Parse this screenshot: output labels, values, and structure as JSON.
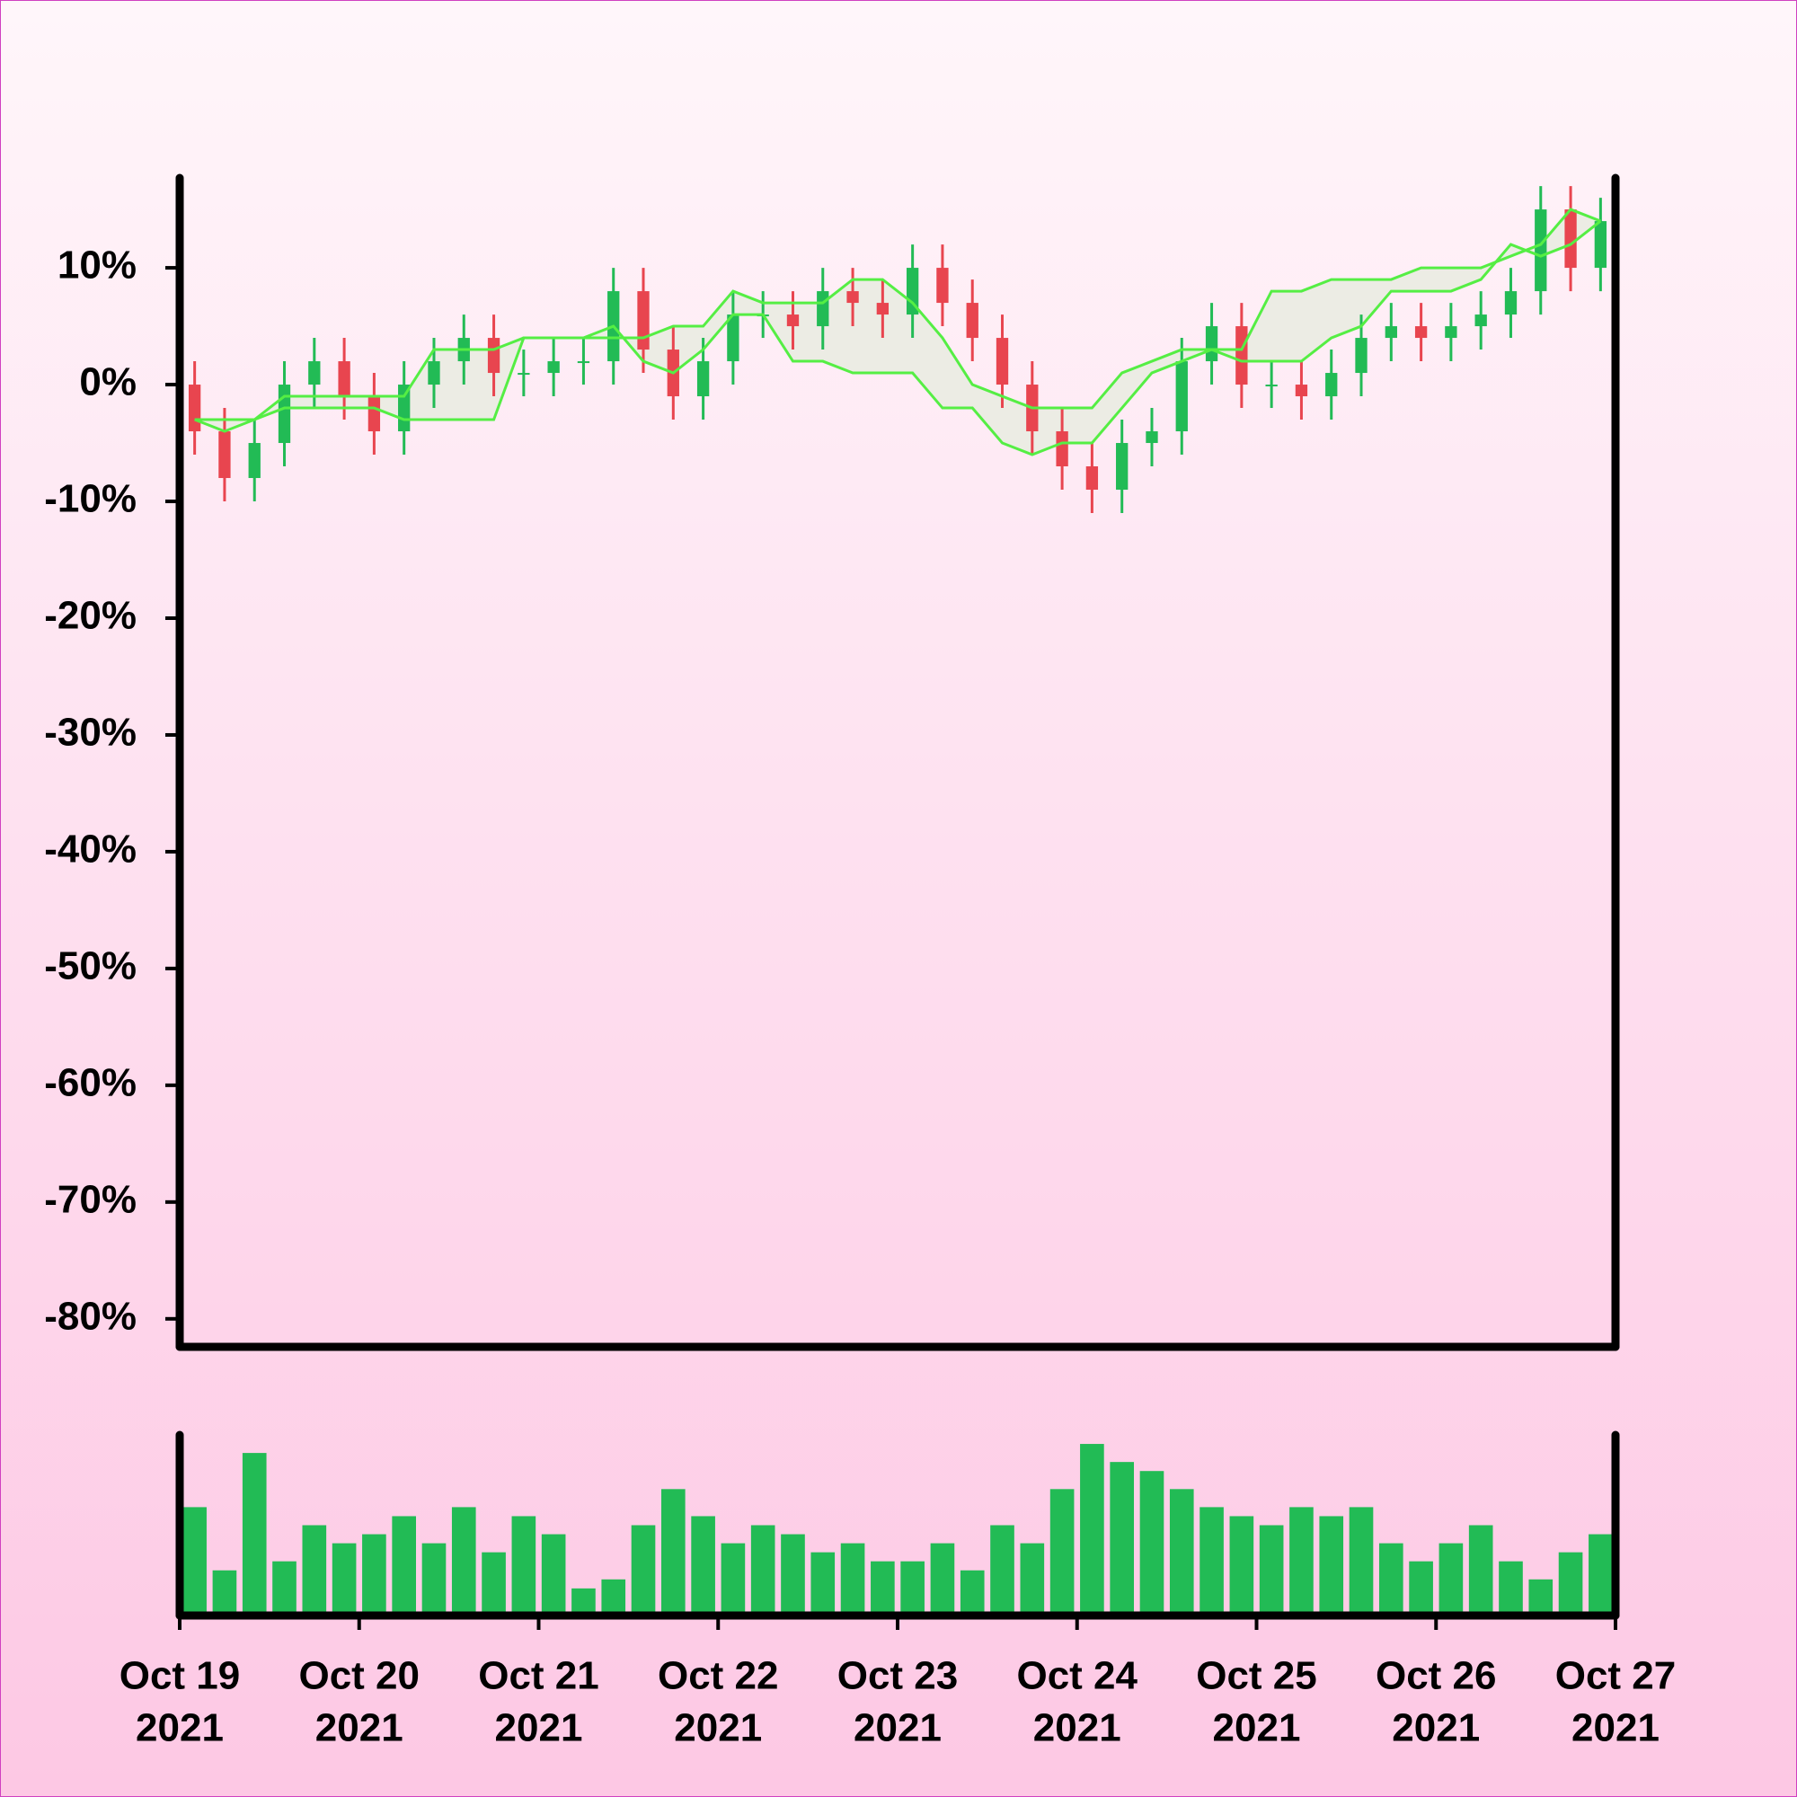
{
  "chart_data": {
    "type": "candlestick",
    "x": [
      0.0833,
      0.25,
      0.4167,
      0.5833,
      0.75,
      0.9167,
      1.0833,
      1.25,
      1.4167,
      1.5833,
      1.75,
      1.9167,
      2.0833,
      2.25,
      2.4167,
      2.5833,
      2.75,
      2.9167,
      3.0833,
      3.25,
      3.4167,
      3.5833,
      3.75,
      3.9167,
      4.0833,
      4.25,
      4.4167,
      4.5833,
      4.75,
      4.9167,
      5.0833,
      5.25,
      5.4167,
      5.5833,
      5.75,
      5.9167,
      6.0833,
      6.25,
      6.4167,
      6.5833,
      6.75,
      6.9167,
      7.0833,
      7.25,
      7.4167,
      7.5833,
      7.75,
      7.9167
    ],
    "open": [
      0,
      -4,
      -8,
      -5,
      0,
      2,
      -1,
      -4,
      0,
      2,
      4,
      1,
      1,
      2,
      2,
      8,
      3,
      -1,
      2,
      6,
      6,
      5,
      8,
      7,
      6,
      10,
      7,
      4,
      0,
      -4,
      -7,
      -9,
      -5,
      -4,
      2,
      5,
      0,
      0,
      -1,
      1,
      4,
      5,
      4,
      5,
      6,
      8,
      15,
      10
    ],
    "high": [
      2,
      -2,
      -3,
      2,
      4,
      4,
      1,
      2,
      4,
      6,
      6,
      3,
      4,
      4,
      10,
      10,
      5,
      4,
      8,
      8,
      8,
      10,
      10,
      9,
      12,
      12,
      9,
      6,
      2,
      -2,
      -5,
      -3,
      -2,
      4,
      7,
      7,
      2,
      2,
      3,
      6,
      7,
      7,
      7,
      8,
      10,
      17,
      17,
      16
    ],
    "low": [
      -6,
      -10,
      -10,
      -7,
      -2,
      -3,
      -6,
      -6,
      -2,
      0,
      -1,
      -1,
      -1,
      0,
      0,
      1,
      -3,
      -3,
      0,
      4,
      3,
      3,
      5,
      4,
      4,
      5,
      2,
      -2,
      -6,
      -9,
      -11,
      -11,
      -7,
      -6,
      0,
      -2,
      -2,
      -3,
      -3,
      -1,
      2,
      2,
      2,
      3,
      4,
      6,
      8,
      8
    ],
    "close": [
      -4,
      -8,
      -5,
      0,
      2,
      -1,
      -4,
      0,
      2,
      4,
      1,
      1,
      2,
      2,
      8,
      3,
      -1,
      2,
      6,
      6,
      5,
      8,
      7,
      6,
      10,
      7,
      4,
      0,
      -4,
      -7,
      -9,
      -5,
      -4,
      2,
      5,
      0,
      0,
      -1,
      1,
      4,
      5,
      4,
      5,
      6,
      8,
      15,
      10,
      14
    ],
    "up_color": "#22bb55",
    "down_color": "#e8454f",
    "bands": [
      {
        "color": "#55ee44",
        "values": [
          -3,
          -3,
          -3,
          -1,
          -1,
          -1,
          -1,
          -1,
          3,
          3,
          3,
          4,
          4,
          4,
          4,
          4,
          5,
          5,
          8,
          7,
          7,
          7,
          9,
          9,
          7,
          4,
          0,
          -1,
          -2,
          -2,
          -2,
          1,
          2,
          3,
          3,
          3,
          8,
          8,
          9,
          9,
          9,
          10,
          10,
          10,
          11,
          12,
          15,
          14
        ]
      },
      {
        "color": "#55ee44",
        "values": [
          -3,
          -4,
          -3,
          -2,
          -2,
          -2,
          -2,
          -3,
          -3,
          -3,
          -3,
          4,
          4,
          4,
          5,
          2,
          1,
          3,
          6,
          6,
          2,
          2,
          1,
          1,
          1,
          -2,
          -2,
          -5,
          -6,
          -5,
          -5,
          -2,
          1,
          2,
          3,
          2,
          2,
          2,
          4,
          5,
          8,
          8,
          8,
          9,
          12,
          11,
          12,
          14
        ]
      }
    ],
    "band_fill": "#ececE4",
    "xlim": [
      0,
      8
    ],
    "xticks": [
      {
        "value": 0,
        "label": [
          "Oct 19",
          "2021"
        ]
      },
      {
        "value": 1,
        "label": [
          "Oct 20",
          "2021"
        ]
      },
      {
        "value": 2,
        "label": [
          "Oct 21",
          "2021"
        ]
      },
      {
        "value": 3,
        "label": [
          "Oct 22",
          "2021"
        ]
      },
      {
        "value": 4,
        "label": [
          "Oct 23",
          "2021"
        ]
      },
      {
        "value": 5,
        "label": [
          "Oct 24",
          "2021"
        ]
      },
      {
        "value": 6,
        "label": [
          "Oct 25",
          "2021"
        ]
      },
      {
        "value": 7,
        "label": [
          "Oct 26",
          "2021"
        ]
      },
      {
        "value": 8,
        "label": [
          "Oct 27",
          "2021"
        ]
      }
    ],
    "ylim": [
      -82.4,
      17.7
    ],
    "yticks": [
      {
        "value": 10,
        "label": "10%"
      },
      {
        "value": 0,
        "label": "0%"
      },
      {
        "value": -10,
        "label": "-10%"
      },
      {
        "value": -20,
        "label": "-20%"
      },
      {
        "value": -30,
        "label": "-30%"
      },
      {
        "value": -40,
        "label": "-40%"
      },
      {
        "value": -50,
        "label": "-50%"
      },
      {
        "value": -60,
        "label": "-60%"
      },
      {
        "value": -70,
        "label": "-70%"
      },
      {
        "value": -80,
        "label": "-80%"
      }
    ],
    "volume": {
      "color": "#22bb55",
      "ylim": [
        0,
        100
      ],
      "values": [
        60,
        25,
        90,
        30,
        50,
        40,
        45,
        55,
        40,
        60,
        35,
        55,
        45,
        15,
        20,
        50,
        70,
        55,
        40,
        50,
        45,
        35,
        40,
        30,
        30,
        40,
        25,
        50,
        40,
        70,
        95,
        85,
        80,
        70,
        60,
        55,
        50,
        60,
        55,
        60,
        40,
        30,
        40,
        50,
        30,
        20,
        35,
        45
      ]
    }
  }
}
